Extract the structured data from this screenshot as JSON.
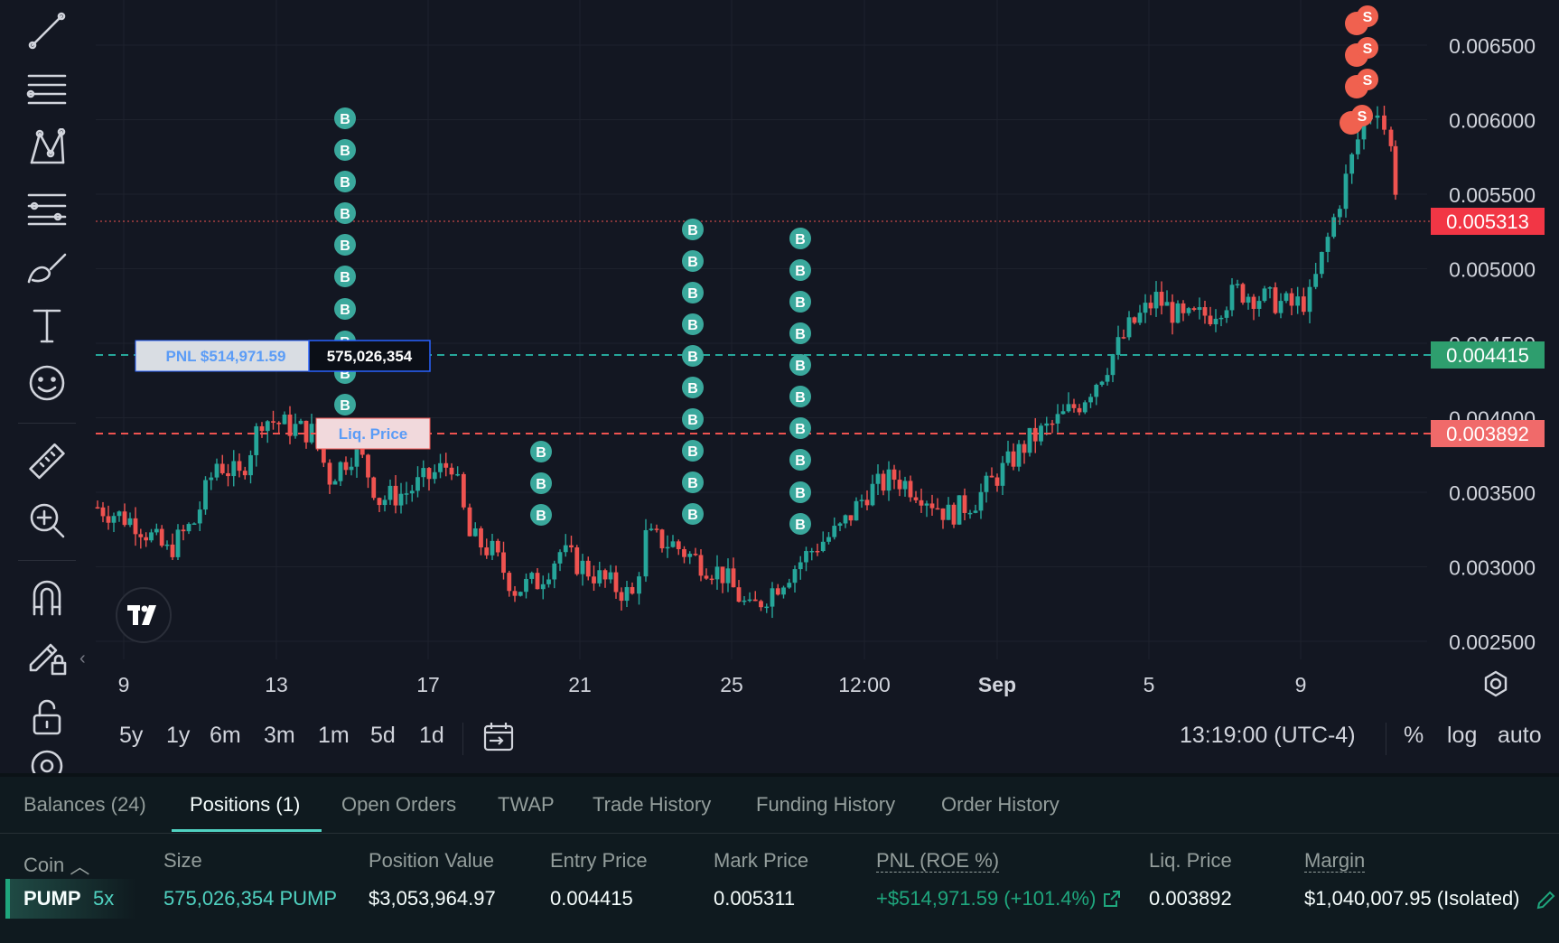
{
  "chart": {
    "price_axis": [
      "0.006500",
      "0.006000",
      "0.005500",
      "0.005000",
      "0.004500",
      "0.004000",
      "0.003500",
      "0.003000",
      "0.002500"
    ],
    "time_axis": [
      "9",
      "13",
      "17",
      "21",
      "25",
      "12:00",
      "Sep",
      "5",
      "9"
    ],
    "current_price_label": "0.005313",
    "entry_price_label": "0.004415",
    "liq_price_label": "0.003892",
    "pnl_label": "PNL $514,971.59",
    "size_label": "575,026,354",
    "liq_tag": "Liq. Price",
    "buy_marker": "B",
    "sell_marker": "S",
    "colors": {
      "up": "#26a69a",
      "down": "#ef5350",
      "bg": "#131722",
      "entry": "#26a69a",
      "liq": "#ef5350"
    }
  },
  "ranges": [
    "5y",
    "1y",
    "6m",
    "3m",
    "1m",
    "5d",
    "1d"
  ],
  "clock": "13:19:00 (UTC-4)",
  "scale_opts": {
    "percent": "%",
    "log": "log",
    "auto": "auto"
  },
  "tabs": [
    "Balances (24)",
    "Positions (1)",
    "Open Orders",
    "TWAP",
    "Trade History",
    "Funding History",
    "Order History"
  ],
  "columns": {
    "coin": "Coin",
    "size": "Size",
    "position_value": "Position Value",
    "entry_price": "Entry Price",
    "mark_price": "Mark Price",
    "pnl": "PNL (ROE %)",
    "liq_price": "Liq. Price",
    "margin": "Margin"
  },
  "position": {
    "coin": "PUMP",
    "leverage": "5x",
    "size": "575,026,354 PUMP",
    "position_value": "$3,053,964.97",
    "entry_price": "0.004415",
    "mark_price": "0.005311",
    "pnl": "+$514,971.59 (+101.4%)",
    "liq_price": "0.003892",
    "margin": "$1,040,007.95 (Isolated)"
  },
  "tools": [
    "trend-line-icon",
    "horizontal-lines-icon",
    "pattern-icon",
    "fib-icon",
    "brush-icon",
    "text-icon",
    "emoji-icon",
    "ruler-icon",
    "zoom-icon",
    "magnet-icon",
    "lock-drawing-icon",
    "unlock-icon",
    "eye-icon"
  ]
}
